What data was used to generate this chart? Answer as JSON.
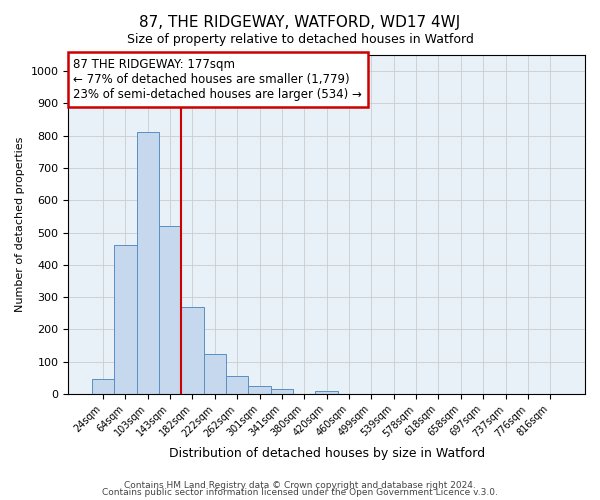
{
  "title": "87, THE RIDGEWAY, WATFORD, WD17 4WJ",
  "subtitle": "Size of property relative to detached houses in Watford",
  "xlabel": "Distribution of detached houses by size in Watford",
  "ylabel": "Number of detached properties",
  "bar_labels": [
    "24sqm",
    "64sqm",
    "103sqm",
    "143sqm",
    "182sqm",
    "222sqm",
    "262sqm",
    "301sqm",
    "341sqm",
    "380sqm",
    "420sqm",
    "460sqm",
    "499sqm",
    "539sqm",
    "578sqm",
    "618sqm",
    "658sqm",
    "697sqm",
    "737sqm",
    "776sqm",
    "816sqm"
  ],
  "bar_values": [
    45,
    460,
    810,
    520,
    270,
    125,
    57,
    25,
    14,
    0,
    8,
    0,
    0,
    0,
    0,
    0,
    0,
    0,
    0,
    0,
    0
  ],
  "bar_color": "#c5d8ed",
  "bar_edgecolor": "#5a8fc0",
  "vline_x": 3.5,
  "vline_color": "#cc0000",
  "annotation_text": "87 THE RIDGEWAY: 177sqm\n← 77% of detached houses are smaller (1,779)\n23% of semi-detached houses are larger (534) →",
  "annotation_box_edgecolor": "#cc0000",
  "ylim": [
    0,
    1050
  ],
  "yticks": [
    0,
    100,
    200,
    300,
    400,
    500,
    600,
    700,
    800,
    900,
    1000
  ],
  "footer_line1": "Contains HM Land Registry data © Crown copyright and database right 2024.",
  "footer_line2": "Contains public sector information licensed under the Open Government Licence v.3.0.",
  "background_color": "#ffffff",
  "plot_bg_color": "#e8f0f8",
  "grid_color": "#cccccc"
}
